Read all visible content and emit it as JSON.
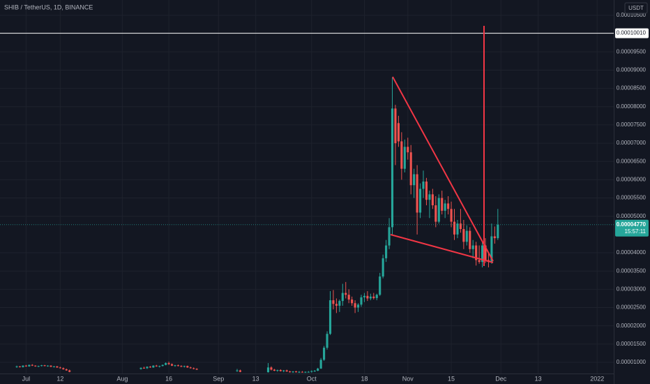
{
  "chart_data": {
    "type": "candlestick",
    "title": "SHIB / TetherUS, 1D, BINANCE",
    "currency": "USDT",
    "up_color": "#26a69a",
    "down_color": "#ef5350",
    "grid": true,
    "ylim": [
      6.94e-06,
      0.0001092
    ],
    "yticks": [
      {
        "value": 1e-05,
        "label": "0.00001000"
      },
      {
        "value": 1.5e-05,
        "label": "0.00001500"
      },
      {
        "value": 2e-05,
        "label": "0.00002000"
      },
      {
        "value": 2.5e-05,
        "label": "0.00002500"
      },
      {
        "value": 3e-05,
        "label": "0.00003000"
      },
      {
        "value": 3.5e-05,
        "label": "0.00003500"
      },
      {
        "value": 4e-05,
        "label": "0.00004000"
      },
      {
        "value": 5e-05,
        "label": "0.00005000"
      },
      {
        "value": 5.5e-05,
        "label": "0.00005500"
      },
      {
        "value": 6e-05,
        "label": "0.00006000"
      },
      {
        "value": 6.5e-05,
        "label": "0.00006500"
      },
      {
        "value": 7e-05,
        "label": "0.00007000"
      },
      {
        "value": 7.5e-05,
        "label": "0.00007500"
      },
      {
        "value": 8e-05,
        "label": "0.00008000"
      },
      {
        "value": 8.5e-05,
        "label": "0.00008500"
      },
      {
        "value": 9e-05,
        "label": "0.00009000"
      },
      {
        "value": 9.5e-05,
        "label": "0.00009500"
      },
      {
        "value": 0.000105,
        "label": "0.00010500"
      }
    ],
    "hline": {
      "value": 0.0001001,
      "label": "0.00010010"
    },
    "last_price": {
      "value": 4.77e-05,
      "label": "0.00004770",
      "countdown": "15:57:11"
    },
    "categories": [
      null,
      null,
      null,
      "Jul",
      null,
      null,
      null,
      null,
      null,
      null,
      null,
      null,
      null,
      null,
      "12",
      null,
      null,
      null,
      null,
      null,
      null,
      null,
      null,
      null,
      null,
      null,
      null,
      null,
      null,
      null,
      null,
      null,
      null,
      null,
      "Aug",
      null,
      null,
      null,
      null,
      null,
      null,
      null,
      null,
      null,
      null,
      null,
      null,
      null,
      null,
      "16",
      null,
      null,
      null,
      null,
      null,
      null,
      null,
      null,
      null,
      null,
      null,
      null,
      null,
      null,
      null,
      "Sep",
      null,
      null,
      null,
      null,
      null,
      null,
      null,
      null,
      null,
      null,
      null,
      "13",
      null,
      null,
      null,
      null,
      null,
      null,
      null,
      null,
      null,
      null,
      null,
      null,
      null,
      null,
      null,
      null,
      null,
      "Oct",
      null,
      null,
      null,
      null,
      null,
      null,
      null,
      null,
      null,
      null,
      null,
      null,
      null,
      null,
      null,
      null,
      "18",
      null,
      null,
      null,
      null,
      null,
      null,
      null,
      null,
      null,
      null,
      null,
      null,
      null,
      "Nov",
      null,
      null,
      null,
      null,
      null,
      null,
      null,
      null,
      null,
      null,
      null,
      null,
      null,
      "15",
      null,
      null,
      null,
      null,
      null,
      null,
      null,
      null,
      null,
      null,
      null,
      null,
      null,
      null,
      null,
      "Dec",
      null,
      null,
      null,
      null,
      null,
      null,
      null,
      null,
      null,
      null,
      null,
      "13",
      null,
      null,
      null,
      null,
      null,
      null,
      null,
      null,
      null,
      null,
      null,
      null,
      null,
      null,
      null,
      null,
      null,
      null,
      "2022",
      null,
      null,
      null,
      null,
      null
    ],
    "ohlc": [
      [
        8.8e-06,
        9.1e-06,
        8.5e-06,
        8.9e-06
      ],
      [
        8.9e-06,
        9e-06,
        8.6e-06,
        8.7e-06
      ],
      [
        8.7e-06,
        9.2e-06,
        8.6e-06,
        9.1e-06
      ],
      [
        9.1e-06,
        9.3e-06,
        8.8e-06,
        8.9e-06
      ],
      [
        8.9e-06,
        9.4e-06,
        8.8e-06,
        9.3e-06
      ],
      [
        9.3e-06,
        9.5e-06,
        9e-06,
        9.1e-06
      ],
      [
        9.1e-06,
        9.2e-06,
        8.8e-06,
        8.9e-06
      ],
      [
        8.9e-06,
        9.1e-06,
        8.7e-06,
        9e-06
      ],
      [
        9e-06,
        9.3e-06,
        8.9e-06,
        9.2e-06
      ],
      [
        9.2e-06,
        9.3e-06,
        8.9e-06,
        9e-06
      ],
      [
        9e-06,
        9.2e-06,
        8.8e-06,
        9.1e-06
      ],
      [
        9.1e-06,
        9.2e-06,
        8.7e-06,
        8.8e-06
      ],
      [
        8.8e-06,
        9e-06,
        8.6e-06,
        8.9e-06
      ],
      [
        8.9e-06,
        9e-06,
        8.5e-06,
        8.6e-06
      ],
      [
        8.6e-06,
        8.8e-06,
        8.3e-06,
        8.4e-06
      ],
      [
        8.4e-06,
        8.6e-06,
        8e-06,
        8.1e-06
      ],
      [
        8.1e-06,
        8.3e-06,
        7.7e-06,
        7.8e-06
      ],
      [
        7.8e-06,
        8e-06,
        7.3e-06,
        7.4e-06
      ],
      null,
      null,
      null,
      null,
      null,
      null,
      null,
      null,
      null,
      null,
      null,
      null,
      null,
      null,
      null,
      null,
      null,
      null,
      null,
      null,
      null,
      null,
      [
        8.2e-06,
        8.6e-06,
        8e-06,
        8.5e-06
      ],
      [
        8.5e-06,
        8.8e-06,
        8.3e-06,
        8.4e-06
      ],
      [
        8.4e-06,
        8.9e-06,
        8.2e-06,
        8.8e-06
      ],
      [
        8.8e-06,
        9e-06,
        8.5e-06,
        8.6e-06
      ],
      [
        8.6e-06,
        9.2e-06,
        8.5e-06,
        9.1e-06
      ],
      [
        9.1e-06,
        9.3e-06,
        8.8e-06,
        8.9e-06
      ],
      [
        8.9e-06,
        9.1e-06,
        8.6e-06,
        9e-06
      ],
      [
        9e-06,
        9.4e-06,
        8.9e-06,
        9.3e-06
      ],
      [
        9.3e-06,
        1e-05,
        9.2e-06,
        9.8e-06
      ],
      [
        9.8e-06,
        1.02e-05,
        9.3e-06,
        9.5e-06
      ],
      [
        9.5e-06,
        9.7e-06,
        9e-06,
        9.1e-06
      ],
      [
        9.1e-06,
        9.3e-06,
        8.8e-06,
        9.2e-06
      ],
      [
        9.2e-06,
        9.4e-06,
        8.9e-06,
        9e-06
      ],
      [
        9e-06,
        9.2e-06,
        8.7e-06,
        8.8e-06
      ],
      [
        8.8e-06,
        9.1e-06,
        8.6e-06,
        9e-06
      ],
      [
        9e-06,
        9.1e-06,
        8.5e-06,
        8.6e-06
      ],
      [
        8.6e-06,
        8.8e-06,
        8.3e-06,
        8.4e-06
      ],
      [
        8.4e-06,
        8.6e-06,
        8.1e-06,
        8.2e-06
      ],
      [
        8.2e-06,
        8.4e-06,
        7.9e-06,
        8e-06
      ],
      null,
      null,
      null,
      null,
      null,
      null,
      null,
      null,
      null,
      null,
      null,
      null,
      [
        7.6e-06,
        8.2e-06,
        7.4e-06,
        7.8e-06
      ],
      [
        7.8e-06,
        8e-06,
        7.3e-06,
        7.4e-06
      ],
      null,
      null,
      null,
      null,
      null,
      null,
      null,
      null,
      [
        7.3e-06,
        9.8e-06,
        7.2e-06,
        8.6e-06
      ],
      [
        8.6e-06,
        8.9e-06,
        7.8e-06,
        8e-06
      ],
      [
        8e-06,
        8.2e-06,
        7.6e-06,
        7.7e-06
      ],
      [
        7.7e-06,
        8e-06,
        7.4e-06,
        7.9e-06
      ],
      [
        7.9e-06,
        8.1e-06,
        7.5e-06,
        7.6e-06
      ],
      [
        7.6e-06,
        7.9e-06,
        7.3e-06,
        7.8e-06
      ],
      [
        7.8e-06,
        8e-06,
        7.4e-06,
        7.5e-06
      ],
      [
        7.5e-06,
        7.7e-06,
        7.2e-06,
        7.3e-06
      ],
      [
        7.3e-06,
        7.6e-06,
        7.1e-06,
        7.5e-06
      ],
      [
        7.5e-06,
        7.7e-06,
        7.2e-06,
        7.3e-06
      ],
      [
        7.3e-06,
        7.6e-06,
        7.1e-06,
        7.4e-06
      ],
      [
        7.4e-06,
        7.6e-06,
        7.2e-06,
        7.3e-06
      ],
      [
        7.3e-06,
        7.5e-06,
        7.1e-06,
        7.4e-06
      ],
      [
        7.4e-06,
        7.6e-06,
        7.2e-06,
        7.4e-06
      ],
      [
        7.4e-06,
        7.8e-06,
        7.2e-06,
        7.6e-06
      ],
      [
        7.6e-06,
        7.9e-06,
        7.4e-06,
        7.7e-06
      ],
      [
        7.7e-06,
        8.5e-06,
        7.6e-06,
        8.3e-06
      ],
      [
        8.3e-06,
        1.12e-05,
        8.2e-06,
        1.07e-05
      ],
      [
        1.07e-05,
        1.45e-05,
        1.04e-05,
        1.4e-05
      ],
      [
        1.4e-05,
        1.85e-05,
        1.35e-05,
        1.78e-05
      ],
      [
        1.78e-05,
        2.95e-05,
        1.75e-05,
        2.7e-05
      ],
      [
        2.7e-05,
        2.98e-05,
        2.45e-05,
        2.6e-05
      ],
      [
        2.6e-05,
        2.75e-05,
        2.35e-05,
        2.55e-05
      ],
      [
        2.55e-05,
        2.72e-05,
        2.38e-05,
        2.68e-05
      ],
      [
        2.68e-05,
        3.15e-05,
        2.55e-05,
        2.9e-05
      ],
      [
        2.9e-05,
        3.2e-05,
        2.75e-05,
        2.85e-05
      ],
      [
        2.85e-05,
        3e-05,
        2.62e-05,
        2.72e-05
      ],
      [
        2.72e-05,
        2.8e-05,
        2.55e-05,
        2.62e-05
      ],
      [
        2.62e-05,
        2.7e-05,
        2.35e-05,
        2.5e-05
      ],
      [
        2.5e-05,
        2.62e-05,
        2.38e-05,
        2.58e-05
      ],
      [
        2.58e-05,
        2.85e-05,
        2.52e-05,
        2.78e-05
      ],
      [
        2.78e-05,
        2.9e-05,
        2.65e-05,
        2.82e-05
      ],
      [
        2.82e-05,
        2.95e-05,
        2.68e-05,
        2.75e-05
      ],
      [
        2.75e-05,
        2.88e-05,
        2.7e-05,
        2.8e-05
      ],
      [
        2.8e-05,
        2.9e-05,
        2.72e-05,
        2.76e-05
      ],
      [
        2.76e-05,
        2.88e-05,
        2.7e-05,
        2.85e-05
      ],
      [
        2.85e-05,
        3.45e-05,
        2.82e-05,
        3.35e-05
      ],
      [
        3.35e-05,
        3.95e-05,
        3.3e-05,
        3.85e-05
      ],
      [
        3.85e-05,
        4.35e-05,
        3.75e-05,
        4.2e-05
      ],
      [
        4.2e-05,
        4.95e-05,
        4.1e-05,
        4.7e-05
      ],
      [
        4.7e-05,
        8.8e-05,
        4.5e-05,
        7.95e-05
      ],
      [
        7.95e-05,
        8.05e-05,
        6.4e-05,
        7e-05
      ],
      [
        7.55e-05,
        7.75e-05,
        6.9e-05,
        7.05e-05
      ],
      [
        7.05e-05,
        7.3e-05,
        6e-05,
        6.3e-05
      ],
      [
        6.3e-05,
        7.1e-05,
        6.2e-05,
        6.9e-05
      ],
      [
        6.9e-05,
        7.15e-05,
        6.55e-05,
        6.75e-05
      ],
      [
        6.75e-05,
        6.95e-05,
        5.6e-05,
        5.85e-05
      ],
      [
        5.85e-05,
        6.3e-05,
        5.5e-05,
        6.15e-05
      ],
      [
        6.15e-05,
        6.4e-05,
        4.5e-05,
        5.1e-05
      ],
      [
        5.1e-05,
        5.9e-05,
        4.95e-05,
        5.75e-05
      ],
      [
        5.75e-05,
        6.25e-05,
        5.5e-05,
        5.95e-05
      ],
      [
        5.95e-05,
        6.05e-05,
        5.3e-05,
        5.45e-05
      ],
      [
        5.45e-05,
        5.7e-05,
        4.95e-05,
        5.6e-05
      ],
      [
        5.6e-05,
        5.75e-05,
        5.2e-05,
        5.3e-05
      ],
      [
        5.3e-05,
        5.55e-05,
        4.7e-05,
        4.85e-05
      ],
      [
        4.85e-05,
        5.6e-05,
        4.8e-05,
        5.5e-05
      ],
      [
        5.5e-05,
        5.7e-05,
        5.05e-05,
        5.15e-05
      ],
      [
        5.15e-05,
        5.45e-05,
        4.95e-05,
        5.35e-05
      ],
      [
        5.35e-05,
        5.55e-05,
        5.05e-05,
        5.2e-05
      ],
      [
        5.2e-05,
        5.4e-05,
        4.7e-05,
        4.85e-05
      ],
      [
        4.85e-05,
        5.2e-05,
        4.35e-05,
        4.5e-05
      ],
      [
        4.5e-05,
        4.9e-05,
        4.4e-05,
        4.8e-05
      ],
      [
        4.8e-05,
        5.2e-05,
        4.55e-05,
        4.65e-05
      ],
      [
        4.65e-05,
        4.9e-05,
        4.1e-05,
        4.3e-05
      ],
      [
        4.3e-05,
        4.75e-05,
        4.2e-05,
        4.6e-05
      ],
      [
        4.6e-05,
        4.7e-05,
        4e-05,
        4.1e-05
      ],
      [
        4.1e-05,
        4.35e-05,
        3.85e-05,
        4.2e-05
      ],
      [
        4.2e-05,
        4.3e-05,
        3.65e-05,
        3.8e-05
      ],
      [
        3.8e-05,
        4.2e-05,
        3.7e-05,
        3.75e-05
      ],
      [
        3.75e-05,
        4.3e-05,
        3.6e-05,
        4.2e-05
      ],
      [
        4.2e-05,
        4.4e-05,
        3.72e-05,
        3.8e-05
      ],
      [
        3.8e-05,
        3.98e-05,
        3.6e-05,
        3.75e-05
      ],
      [
        3.75e-05,
        4.8e-05,
        3.7e-05,
        4.45e-05
      ],
      [
        4.45e-05,
        4.72e-05,
        4.25e-05,
        4.4e-05
      ],
      [
        4.4e-05,
        5.2e-05,
        4.35e-05,
        4.77e-05
      ],
      null,
      null,
      null,
      null,
      null,
      null,
      null,
      null,
      null,
      null,
      null,
      null,
      null,
      null,
      null,
      null,
      null,
      null,
      null,
      null,
      null,
      null,
      null,
      null,
      null,
      null,
      null,
      null,
      null,
      null,
      null,
      null,
      null,
      null,
      null,
      null,
      null,
      null,
      null,
      null,
      null
    ]
  }
}
